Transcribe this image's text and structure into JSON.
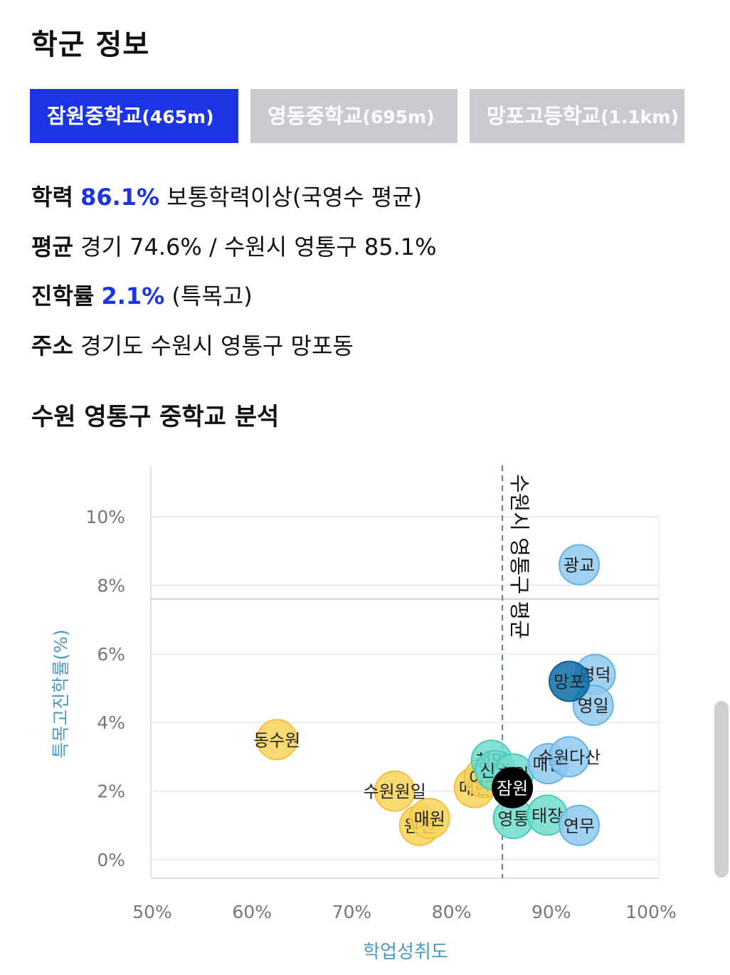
{
  "page_title": "학군 정보",
  "tabs": [
    {
      "name": "잠원중학교",
      "distance": "(465m)",
      "active": true
    },
    {
      "name": "영동중학교",
      "distance": "(695m)",
      "active": false
    },
    {
      "name": "망포고등학교",
      "distance": "(1.1km)",
      "active": false
    }
  ],
  "info": {
    "achievement_label": "학력",
    "achievement_value": "86.1%",
    "achievement_desc": "보통학력이상(국영수 평균)",
    "average_label": "평균",
    "average_text": "경기 74.6% / 수원시 영통구 85.1%",
    "admission_label": "진학률",
    "admission_value": "2.1%",
    "admission_desc": "(특목고)",
    "address_label": "주소",
    "address_text": "경기도 수원시 영통구 망포동"
  },
  "section_title": "수원 영통구 중학교 분석",
  "colors": {
    "accent": "#1b34e6",
    "tab_inactive": "#c9cbd1",
    "yellow": "#f7d35a",
    "teal": "#6fdccc",
    "blue": "#8fc9ee",
    "dark_blue": "#0a6fa8",
    "selected": "#000000",
    "axis_label": "#4a98c8"
  },
  "chart_data": {
    "type": "scatter",
    "xlabel": "학업성취도",
    "ylabel": "특목고진학률(%)",
    "xlim": [
      50,
      100
    ],
    "ylim": [
      0,
      10
    ],
    "x_ticks": [
      "50%",
      "60%",
      "70%",
      "80%",
      "90%",
      "100%"
    ],
    "y_ticks": [
      "0%",
      "2%",
      "4%",
      "6%",
      "8%",
      "10%"
    ],
    "reference_lines": {
      "vertical": {
        "x": 85.1,
        "label": "수원시 영통구 평균"
      },
      "horizontal": {
        "y": 7.6
      }
    },
    "points": [
      {
        "label": "동수원",
        "x": 62.5,
        "y": 3.5,
        "group": "yellow"
      },
      {
        "label": "수원원일",
        "x": 74.3,
        "y": 2.0,
        "group": "yellow"
      },
      {
        "label": "원천",
        "x": 76.8,
        "y": 1.0,
        "group": "yellow"
      },
      {
        "label": "매원",
        "x": 77.8,
        "y": 1.2,
        "group": "yellow"
      },
      {
        "label": "매현",
        "x": 82.3,
        "y": 2.1,
        "group": "yellow"
      },
      {
        "label": "이의",
        "x": 83.3,
        "y": 2.4,
        "group": "yellow"
      },
      {
        "label": "청명",
        "x": 84.0,
        "y": 2.9,
        "group": "teal"
      },
      {
        "label": "신일",
        "x": 84.4,
        "y": 2.6,
        "group": "teal"
      },
      {
        "label": "효원",
        "x": 86.2,
        "y": 2.5,
        "group": "teal"
      },
      {
        "label": "영통",
        "x": 86.2,
        "y": 1.2,
        "group": "teal"
      },
      {
        "label": "태장",
        "x": 89.6,
        "y": 1.3,
        "group": "teal"
      },
      {
        "label": "매탄",
        "x": 89.7,
        "y": 2.8,
        "group": "blue"
      },
      {
        "label": "수원다산",
        "x": 91.8,
        "y": 3.0,
        "group": "blue"
      },
      {
        "label": "연무",
        "x": 92.8,
        "y": 1.0,
        "group": "blue"
      },
      {
        "label": "광교",
        "x": 92.8,
        "y": 8.6,
        "group": "blue"
      },
      {
        "label": "영덕",
        "x": 94.4,
        "y": 5.4,
        "group": "blue"
      },
      {
        "label": "영일",
        "x": 94.2,
        "y": 4.5,
        "group": "blue"
      },
      {
        "label": "망포",
        "x": 91.8,
        "y": 5.2,
        "group": "dark_blue"
      },
      {
        "label": "잠원",
        "x": 86.1,
        "y": 2.1,
        "group": "selected"
      }
    ]
  }
}
